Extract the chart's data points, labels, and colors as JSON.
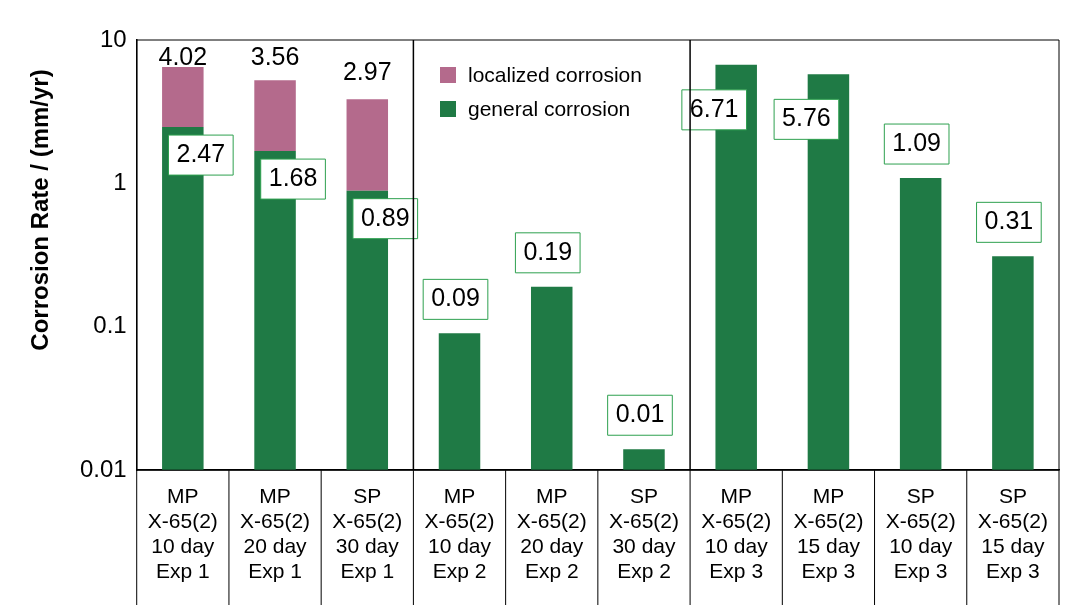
{
  "chart_data": {
    "type": "bar",
    "ylabel": "Corrosion Rate / (mm/yr)",
    "stacked": true,
    "log": "y",
    "ylim": [
      0.01,
      10
    ],
    "yticks": [
      0.01,
      0.1,
      1,
      10
    ],
    "grid": false,
    "legend": "top",
    "categories": [
      "MP\nX-65(2)\n10 day\nExp 1",
      "MP\nX-65(2)\n20 day\nExp 1",
      "SP\nX-65(2)\n30 day\nExp 1",
      "MP\nX-65(2)\n10 day\nExp 2",
      "MP\nX-65(2)\n20 day\nExp 2",
      "SP\nX-65(2)\n30 day\nExp 2",
      "MP\nX-65(2)\n10 day\nExp 3",
      "MP\nX-65(2)\n15 day\nExp 3",
      "SP\nX-65(2)\n10 day\nExp 3",
      "SP\nX-65(2)\n15 day\nExp 3"
    ],
    "series": [
      {
        "name": "general corrosion",
        "color": "#1f7a45",
        "values": [
          2.47,
          1.68,
          0.89,
          0.09,
          0.19,
          0.014,
          6.71,
          5.76,
          1.09,
          0.31
        ],
        "value_labels": [
          "2.47",
          "1.68",
          "0.89",
          "0.09",
          "0.19",
          "0.01",
          "6.71",
          "5.76",
          "1.09",
          "0.31"
        ]
      },
      {
        "name": "localized corrosion",
        "color": "#b46a8c",
        "values": [
          4.02,
          3.56,
          2.97,
          null,
          null,
          null,
          null,
          null,
          null,
          null
        ],
        "value_labels": [
          "4.02",
          "3.56",
          "2.97",
          null,
          null,
          null,
          null,
          null,
          null,
          null
        ]
      }
    ]
  }
}
